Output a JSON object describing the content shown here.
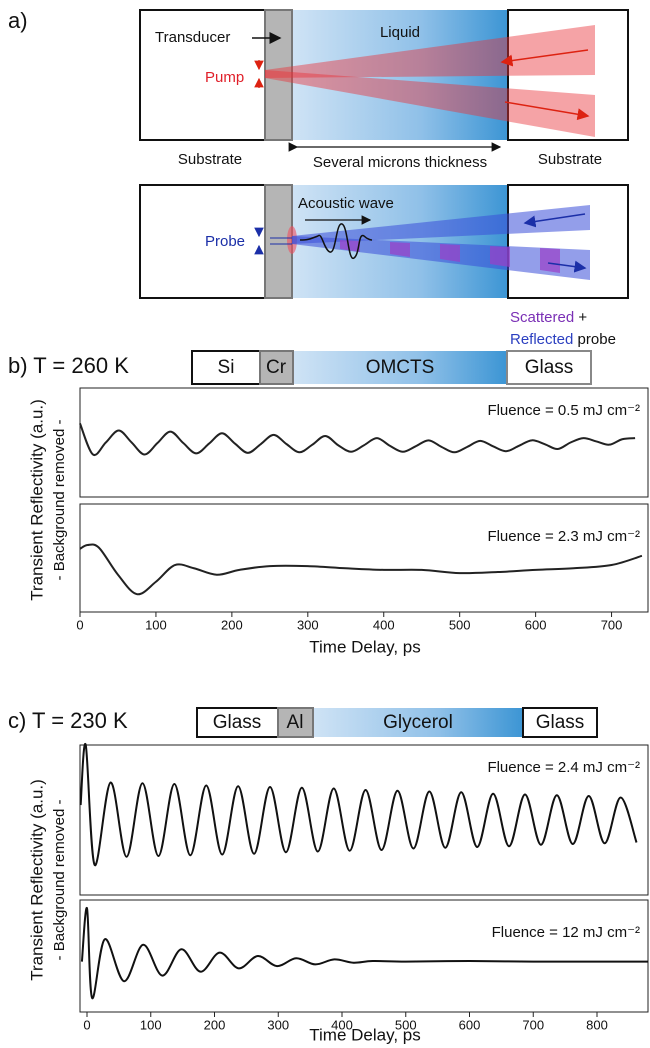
{
  "panel_a": {
    "label": "a)",
    "transducer": "Transducer",
    "liquid": "Liquid",
    "pump": "Pump",
    "substrate_left": "Substrate",
    "thickness": "Several microns thickness",
    "substrate_right": "Substrate",
    "acoustic": "Acoustic wave",
    "probe": "Probe",
    "legend": [
      "Scattered",
      "+",
      "Reflected",
      "probe"
    ]
  },
  "panel_b": {
    "label": "b)",
    "title": "T = 260 K",
    "layers": [
      "Si",
      "Cr",
      "OMCTS",
      "Glass"
    ],
    "ylabel": "Transient Reflectivity (a.u.)",
    "ylabel_sub": "- Background removed -",
    "xlabel": "Time Delay, ps"
  },
  "panel_c": {
    "label": "c)",
    "title": "T = 230 K",
    "layers": [
      "Glass",
      "Al",
      "Glycerol",
      "Glass"
    ],
    "ylabel": "Transient Reflectivity (a.u.)",
    "ylabel_sub": "- Background removed -",
    "xlabel": "Time Delay, ps"
  },
  "chart_data": [
    {
      "type": "line",
      "annotation": "Fluence = 0.5 mJ cm⁻²",
      "color": "#222222",
      "xlim": [
        0,
        748
      ],
      "ylim": [
        -1,
        1
      ],
      "x": [
        0,
        17,
        34,
        51,
        68,
        85,
        102,
        119,
        136,
        153,
        170,
        187,
        204,
        221,
        238,
        255,
        272,
        289,
        306,
        323,
        340,
        357,
        374,
        391,
        408,
        425,
        442,
        459,
        476,
        493,
        510,
        527,
        544,
        561,
        578,
        595,
        612,
        629,
        646,
        663,
        680,
        697,
        714,
        731
      ],
      "values": [
        0.35,
        -0.22,
        0,
        0.22,
        0,
        -0.22,
        -0.01,
        0.2,
        -0.01,
        -0.2,
        -0.02,
        0.17,
        -0.02,
        -0.19,
        -0.03,
        0.14,
        -0.03,
        -0.18,
        -0.04,
        0.12,
        -0.05,
        -0.17,
        -0.05,
        0.08,
        -0.06,
        -0.17,
        -0.07,
        0.04,
        -0.08,
        -0.18,
        -0.08,
        0.03,
        -0.07,
        -0.16,
        -0.06,
        0.04,
        -0.03,
        -0.12,
        0,
        0.08,
        0.02,
        -0.04,
        0.06,
        0.08
      ]
    },
    {
      "type": "line",
      "annotation": "Fluence = 2.3 mJ cm⁻²",
      "color": "#222222",
      "xlim": [
        0,
        748
      ],
      "ylim": [
        -1,
        1
      ],
      "xticks": [
        0,
        100,
        200,
        300,
        400,
        500,
        600,
        700
      ],
      "x": [
        0,
        10,
        25,
        50,
        75,
        100,
        125,
        150,
        180,
        210,
        250,
        300,
        350,
        400,
        450,
        500,
        550,
        600,
        650,
        700,
        740
      ],
      "values": [
        0.17,
        0.24,
        0.19,
        -0.31,
        -0.67,
        -0.44,
        -0.13,
        -0.19,
        -0.31,
        -0.22,
        -0.15,
        -0.15,
        -0.19,
        -0.22,
        -0.22,
        -0.28,
        -0.26,
        -0.22,
        -0.19,
        -0.13,
        0.04
      ]
    },
    {
      "type": "line",
      "annotation": "Fluence = 2.4 mJ cm⁻²",
      "color": "#111111",
      "xlim": [
        -11,
        880
      ],
      "ylim": [
        -1,
        1
      ],
      "x": [
        -10,
        -2,
        12,
        37,
        62,
        87,
        112,
        137,
        162,
        187,
        212,
        237,
        262,
        287,
        312,
        337,
        362,
        387,
        412,
        437,
        462,
        487,
        512,
        537,
        562,
        587,
        612,
        637,
        662,
        687,
        712,
        737,
        762,
        787,
        812,
        837,
        862
      ],
      "values": [
        0.2,
        1,
        -0.6,
        0.5,
        -0.49,
        0.49,
        -0.48,
        0.48,
        -0.47,
        0.46,
        -0.46,
        0.45,
        -0.45,
        0.44,
        -0.43,
        0.43,
        -0.42,
        0.42,
        -0.41,
        0.4,
        -0.4,
        0.39,
        -0.38,
        0.38,
        -0.37,
        0.37,
        -0.36,
        0.35,
        -0.35,
        0.34,
        -0.33,
        0.33,
        -0.32,
        0.32,
        -0.31,
        0.3,
        -0.3
      ]
    },
    {
      "type": "line",
      "annotation": "Fluence = 12 mJ cm⁻²",
      "color": "#111111",
      "xlim": [
        -11,
        880
      ],
      "ylim": [
        -1,
        1
      ],
      "xticks": [
        0,
        100,
        200,
        300,
        400,
        500,
        600,
        700,
        800
      ],
      "x": [
        -8,
        0,
        8,
        28,
        58,
        88,
        118,
        148,
        178,
        208,
        238,
        268,
        298,
        328,
        358,
        388,
        418,
        448,
        500,
        600,
        700,
        800,
        880
      ],
      "values": [
        -0.1,
        0.85,
        -0.75,
        0.3,
        -0.45,
        0.2,
        -0.35,
        0.12,
        -0.28,
        0.06,
        -0.22,
        0,
        -0.18,
        -0.04,
        -0.15,
        -0.06,
        -0.12,
        -0.09,
        -0.1,
        -0.09,
        -0.1,
        -0.1,
        -0.1
      ]
    }
  ]
}
